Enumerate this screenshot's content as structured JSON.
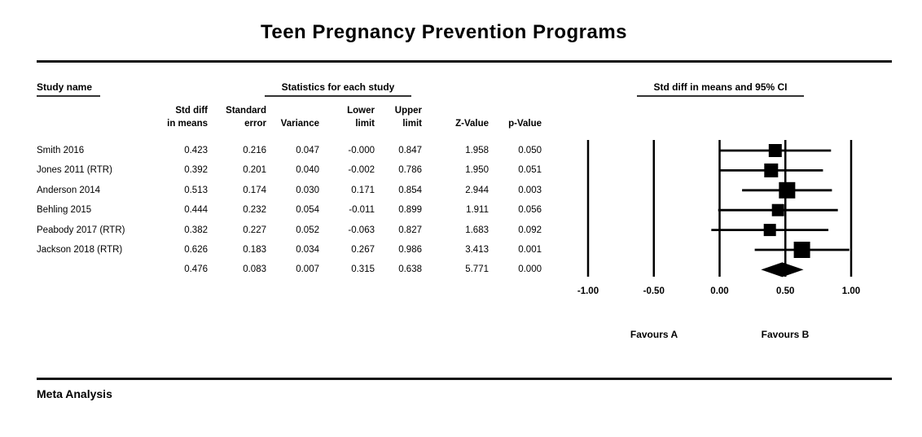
{
  "title": "Teen Pregnancy Prevention Programs",
  "section_headers": {
    "study": "Study name",
    "stats": "Statistics for each study",
    "plot": "Std diff in means and 95% CI"
  },
  "stat_columns": [
    [
      "Std diff",
      "in means"
    ],
    [
      "Standard",
      "error"
    ],
    [
      "",
      "Variance"
    ],
    [
      "Lower",
      "limit"
    ],
    [
      "Upper",
      "limit"
    ],
    [
      "",
      "Z-Value"
    ],
    [
      "",
      "p-Value"
    ]
  ],
  "footer_label": "Meta Analysis",
  "colors": {
    "ink": "#000000",
    "background": "#ffffff"
  },
  "chart_data": {
    "type": "forest",
    "title": "Teen Pregnancy Prevention Programs",
    "x_axis": {
      "xlim": [
        -1.0,
        1.0
      ],
      "ticks": [
        -1.0,
        -0.5,
        0.0,
        0.5,
        1.0
      ],
      "tick_labels": [
        "-1.00",
        "-0.50",
        "0.00",
        "0.50",
        "1.00"
      ],
      "gridlines": true,
      "left_label": "Favours A",
      "right_label": "Favours B"
    },
    "column_order": [
      "std_diff_in_means",
      "standard_error",
      "variance",
      "lower_limit",
      "upper_limit",
      "z_value",
      "p_value"
    ],
    "studies": [
      {
        "name": "Smith 2016",
        "display": [
          "0.423",
          "0.216",
          "0.047",
          "-0.000",
          "0.847",
          "1.958",
          "0.050"
        ],
        "point": 0.423,
        "lower": 0.0,
        "upper": 0.847,
        "marker_size": 16
      },
      {
        "name": "Jones 2011 (RTR)",
        "display": [
          "0.392",
          "0.201",
          "0.040",
          "-0.002",
          "0.786",
          "1.950",
          "0.051"
        ],
        "point": 0.392,
        "lower": -0.002,
        "upper": 0.786,
        "marker_size": 17
      },
      {
        "name": "Anderson 2014",
        "display": [
          "0.513",
          "0.174",
          "0.030",
          "0.171",
          "0.854",
          "2.944",
          "0.003"
        ],
        "point": 0.513,
        "lower": 0.171,
        "upper": 0.854,
        "marker_size": 20
      },
      {
        "name": "Behling 2015",
        "display": [
          "0.444",
          "0.232",
          "0.054",
          "-0.011",
          "0.899",
          "1.911",
          "0.056"
        ],
        "point": 0.444,
        "lower": -0.011,
        "upper": 0.899,
        "marker_size": 15
      },
      {
        "name": "Peabody 2017 (RTR)",
        "display": [
          "0.382",
          "0.227",
          "0.052",
          "-0.063",
          "0.827",
          "1.683",
          "0.092"
        ],
        "point": 0.382,
        "lower": -0.063,
        "upper": 0.827,
        "marker_size": 15
      },
      {
        "name": "Jackson 2018 (RTR)",
        "display": [
          "0.626",
          "0.183",
          "0.034",
          "0.267",
          "0.986",
          "3.413",
          "0.001"
        ],
        "point": 0.626,
        "lower": 0.267,
        "upper": 0.986,
        "marker_size": 20
      }
    ],
    "summary": {
      "name": "",
      "display": [
        "0.476",
        "0.083",
        "0.007",
        "0.315",
        "0.638",
        "5.771",
        "0.000"
      ],
      "point": 0.476,
      "lower": 0.315,
      "upper": 0.638
    }
  }
}
